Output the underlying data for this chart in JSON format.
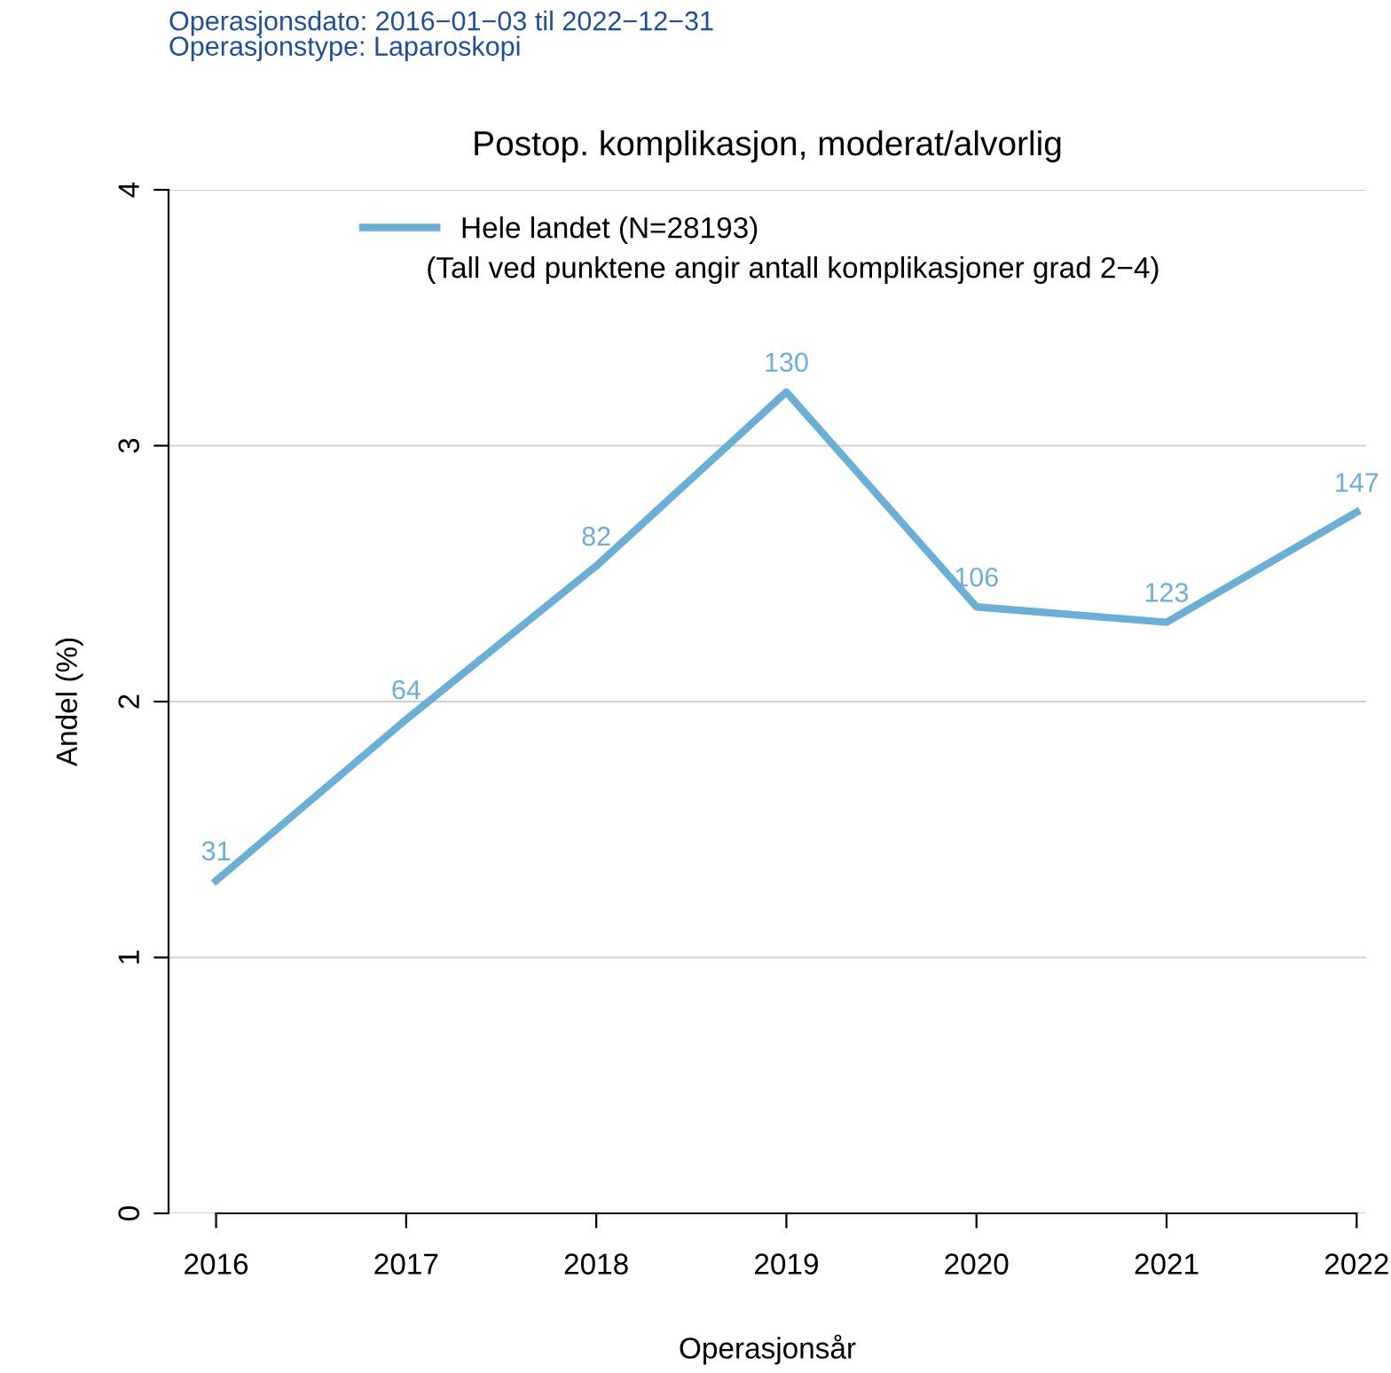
{
  "chart_data": {
    "type": "line",
    "title": "Postop. komplikasjon, moderat/alvorlig",
    "subtitle": "Operasjonsdato: 2016−01−03 til 2022−12−31\nOperasjonstype: Laparoskopi",
    "xlabel": "Operasjonsår",
    "ylabel": "Andel (%)",
    "categories": [
      "2016",
      "2017",
      "2018",
      "2019",
      "2020",
      "2021",
      "2022"
    ],
    "series": [
      {
        "name": "Hele landet (N=28193)",
        "color": "#6baed6",
        "values": [
          1.3,
          1.93,
          2.53,
          3.21,
          2.37,
          2.31,
          2.74
        ]
      }
    ],
    "annotations": [
      "(Tall ved punktene angir antall komplikasjoner grad 2−4)",
      {
        "text": "31",
        "x": "2016",
        "y": 1.3
      },
      {
        "text": "64",
        "x": "2017",
        "y": 1.93
      },
      {
        "text": "82",
        "x": "2018",
        "y": 2.53
      },
      {
        "text": "130",
        "x": "2019",
        "y": 3.21
      },
      {
        "text": "106",
        "x": "2020",
        "y": 2.37
      },
      {
        "text": "123",
        "x": "2021",
        "y": 2.31
      },
      {
        "text": "147",
        "x": "2022",
        "y": 2.74
      }
    ],
    "ylim": [
      0,
      4
    ],
    "yticks": [
      0,
      1,
      2,
      3,
      4
    ],
    "grid": "y",
    "legend": "top left",
    "marker": "none",
    "line_style": "solid"
  }
}
